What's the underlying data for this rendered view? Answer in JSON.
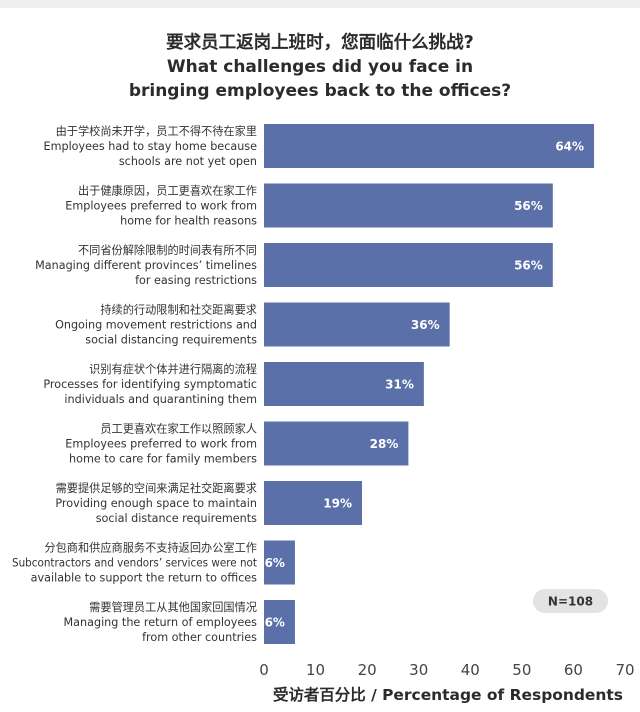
{
  "chart_data": {
    "type": "bar",
    "orientation": "horizontal",
    "title": [
      "要求员工返岗上班时，您面临什么挑战?",
      "What challenges did you face in",
      "bringing employees back to the offices?"
    ],
    "categories": [
      [
        "由于学校尚未开学，员工不得不待在家里",
        "Employees had to stay home because",
        "schools are not yet open"
      ],
      [
        "出于健康原因，员工更喜欢在家工作",
        "Employees preferred to work from",
        "home for health reasons"
      ],
      [
        "不同省份解除限制的时间表有所不同",
        "Managing different provinces’ timelines",
        "for easing restrictions"
      ],
      [
        "持续的行动限制和社交距离要求",
        "Ongoing movement restrictions and",
        "social distancing requirements"
      ],
      [
        "识别有症状个体并进行隔离的流程",
        "Processes for identifying symptomatic",
        "individuals and quarantining them"
      ],
      [
        "员工更喜欢在家工作以照顾家人",
        "Employees preferred to work from",
        "home to care for family members"
      ],
      [
        "需要提供足够的空间来满足社交距离要求",
        "Providing enough space to maintain",
        "social distance requirements"
      ],
      [
        "分包商和供应商服务不支持返回办公室工作",
        "Subcontractors and vendors’ services were not",
        "available to support the return to offices"
      ],
      [
        "需要管理员工从其他国家回国情况",
        "Managing the return of employees",
        "from other countries"
      ]
    ],
    "values": [
      64,
      56,
      56,
      36,
      31,
      28,
      19,
      6,
      6
    ],
    "value_labels": [
      "64%",
      "56%",
      "56%",
      "36%",
      "31%",
      "28%",
      "19%",
      "6%",
      "6%"
    ],
    "xlim": [
      0,
      70
    ],
    "xticks": [
      0,
      10,
      20,
      30,
      40,
      50,
      60,
      70
    ],
    "xlabel": "受访者百分比 / Percentage of Respondents",
    "note": "N=108",
    "bar_color": "#5b6fa8",
    "grid": false
  }
}
